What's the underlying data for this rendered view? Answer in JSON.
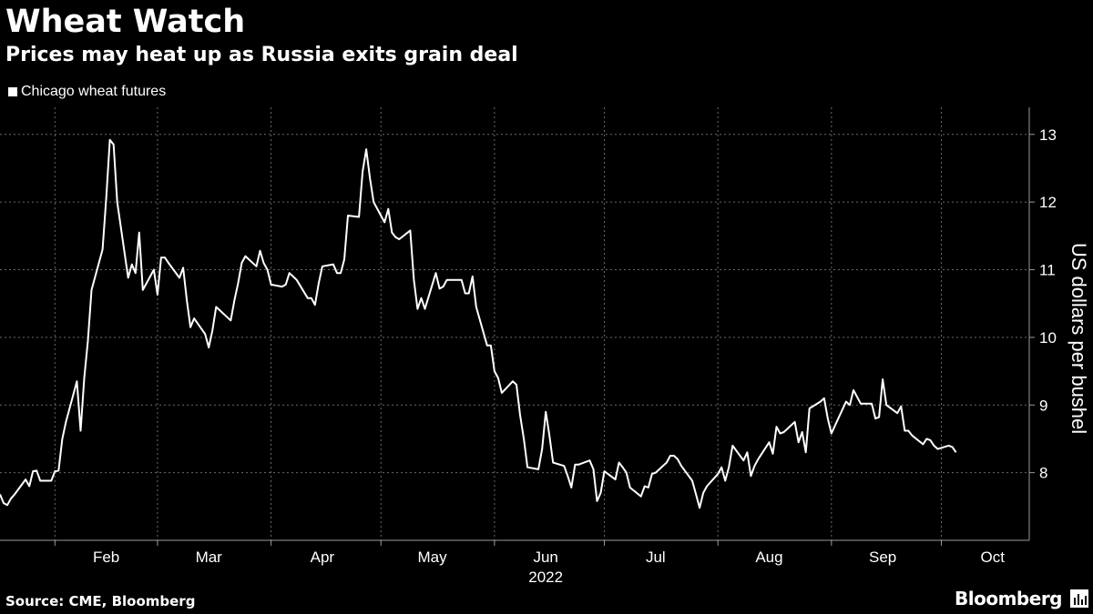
{
  "header": {
    "title": "Wheat Watch",
    "subtitle": "Prices may heat up as Russia exits grain deal"
  },
  "footer": {
    "source": "Source: CME, Bloomberg",
    "brand": "Bloomberg",
    "brand_icon": "bar-chart-icon"
  },
  "chart_data": {
    "type": "line",
    "legend_position": "top-left",
    "grid": true,
    "ylabel": "US dollars per bushel",
    "xlabel": "2022",
    "ylim": [
      7.0,
      13.4
    ],
    "xlim": [
      "2022-01-17",
      "2022-10-25"
    ],
    "y_ticks": [
      8,
      9,
      10,
      11,
      12,
      13
    ],
    "x_ticks": [
      {
        "label": "Feb",
        "date": "2022-02-01"
      },
      {
        "label": "Mar",
        "date": "2022-03-01"
      },
      {
        "label": "Apr",
        "date": "2022-04-01"
      },
      {
        "label": "May",
        "date": "2022-05-01"
      },
      {
        "label": "Jun",
        "date": "2022-06-01"
      },
      {
        "label": "Jul",
        "date": "2022-07-01"
      },
      {
        "label": "Aug",
        "date": "2022-08-01"
      },
      {
        "label": "Sep",
        "date": "2022-09-01"
      },
      {
        "label": "Oct",
        "date": "2022-10-01"
      }
    ],
    "series": [
      {
        "name": "Chicago wheat futures",
        "color": "#ffffff",
        "points": [
          [
            "2022-01-17",
            7.68
          ],
          [
            "2022-01-18",
            7.55
          ],
          [
            "2022-01-19",
            7.52
          ],
          [
            "2022-01-20",
            7.62
          ],
          [
            "2022-01-21",
            7.68
          ],
          [
            "2022-01-24",
            7.9
          ],
          [
            "2022-01-25",
            7.8
          ],
          [
            "2022-01-26",
            8.02
          ],
          [
            "2022-01-27",
            8.03
          ],
          [
            "2022-01-28",
            7.88
          ],
          [
            "2022-01-31",
            7.88
          ],
          [
            "2022-02-01",
            8.02
          ],
          [
            "2022-02-02",
            8.03
          ],
          [
            "2022-02-03",
            8.5
          ],
          [
            "2022-02-04",
            8.75
          ],
          [
            "2022-02-07",
            9.35
          ],
          [
            "2022-02-08",
            8.62
          ],
          [
            "2022-02-09",
            9.4
          ],
          [
            "2022-02-10",
            9.95
          ],
          [
            "2022-02-11",
            10.7
          ],
          [
            "2022-02-14",
            11.3
          ],
          [
            "2022-02-15",
            12.05
          ],
          [
            "2022-02-16",
            12.92
          ],
          [
            "2022-02-17",
            12.85
          ],
          [
            "2022-02-18",
            12.0
          ],
          [
            "2022-02-21",
            10.88
          ],
          [
            "2022-02-22",
            11.08
          ],
          [
            "2022-02-23",
            10.95
          ],
          [
            "2022-02-24",
            11.55
          ],
          [
            "2022-02-25",
            10.7
          ],
          [
            "2022-02-28",
            11.0
          ],
          [
            "2022-03-01",
            10.63
          ],
          [
            "2022-03-02",
            11.18
          ],
          [
            "2022-03-03",
            11.18
          ],
          [
            "2022-03-04",
            11.1
          ],
          [
            "2022-03-07",
            10.88
          ],
          [
            "2022-03-08",
            11.03
          ],
          [
            "2022-03-09",
            10.55
          ],
          [
            "2022-03-10",
            10.15
          ],
          [
            "2022-03-11",
            10.28
          ],
          [
            "2022-03-14",
            10.05
          ],
          [
            "2022-03-15",
            9.85
          ],
          [
            "2022-03-16",
            10.1
          ],
          [
            "2022-03-17",
            10.45
          ],
          [
            "2022-03-18",
            10.4
          ],
          [
            "2022-03-21",
            10.25
          ],
          [
            "2022-03-22",
            10.55
          ],
          [
            "2022-03-23",
            10.8
          ],
          [
            "2022-03-24",
            11.1
          ],
          [
            "2022-03-25",
            11.2
          ],
          [
            "2022-03-28",
            11.05
          ],
          [
            "2022-03-29",
            11.28
          ],
          [
            "2022-03-30",
            11.1
          ],
          [
            "2022-03-31",
            11.0
          ],
          [
            "2022-04-01",
            10.78
          ],
          [
            "2022-04-04",
            10.75
          ],
          [
            "2022-04-05",
            10.78
          ],
          [
            "2022-04-06",
            10.95
          ],
          [
            "2022-04-07",
            10.9
          ],
          [
            "2022-04-08",
            10.85
          ],
          [
            "2022-04-11",
            10.58
          ],
          [
            "2022-04-12",
            10.58
          ],
          [
            "2022-04-13",
            10.48
          ],
          [
            "2022-04-14",
            10.8
          ],
          [
            "2022-04-15",
            11.05
          ],
          [
            "2022-04-18",
            11.08
          ],
          [
            "2022-04-19",
            10.95
          ],
          [
            "2022-04-20",
            10.95
          ],
          [
            "2022-04-21",
            11.15
          ],
          [
            "2022-04-22",
            11.8
          ],
          [
            "2022-04-25",
            11.78
          ],
          [
            "2022-04-26",
            12.45
          ],
          [
            "2022-04-27",
            12.78
          ],
          [
            "2022-04-28",
            12.35
          ],
          [
            "2022-04-29",
            12.0
          ],
          [
            "2022-05-02",
            11.7
          ],
          [
            "2022-05-03",
            11.9
          ],
          [
            "2022-05-04",
            11.55
          ],
          [
            "2022-05-05",
            11.48
          ],
          [
            "2022-05-06",
            11.45
          ],
          [
            "2022-05-09",
            11.58
          ],
          [
            "2022-05-10",
            10.85
          ],
          [
            "2022-05-11",
            10.42
          ],
          [
            "2022-05-12",
            10.58
          ],
          [
            "2022-05-13",
            10.42
          ],
          [
            "2022-05-16",
            10.95
          ],
          [
            "2022-05-17",
            10.72
          ],
          [
            "2022-05-18",
            10.75
          ],
          [
            "2022-05-19",
            10.85
          ],
          [
            "2022-05-20",
            10.85
          ],
          [
            "2022-05-23",
            10.85
          ],
          [
            "2022-05-24",
            10.65
          ],
          [
            "2022-05-25",
            10.65
          ],
          [
            "2022-05-26",
            10.9
          ],
          [
            "2022-05-27",
            10.45
          ],
          [
            "2022-05-30",
            9.88
          ],
          [
            "2022-05-31",
            9.88
          ],
          [
            "2022-06-01",
            9.5
          ],
          [
            "2022-06-02",
            9.4
          ],
          [
            "2022-06-03",
            9.18
          ],
          [
            "2022-06-06",
            9.35
          ],
          [
            "2022-06-07",
            9.3
          ],
          [
            "2022-06-08",
            8.85
          ],
          [
            "2022-06-09",
            8.5
          ],
          [
            "2022-06-10",
            8.08
          ],
          [
            "2022-06-13",
            8.05
          ],
          [
            "2022-06-14",
            8.35
          ],
          [
            "2022-06-15",
            8.9
          ],
          [
            "2022-06-16",
            8.55
          ],
          [
            "2022-06-17",
            8.15
          ],
          [
            "2022-06-20",
            8.1
          ],
          [
            "2022-06-21",
            7.95
          ],
          [
            "2022-06-22",
            7.78
          ],
          [
            "2022-06-23",
            8.12
          ],
          [
            "2022-06-24",
            8.12
          ],
          [
            "2022-06-27",
            8.18
          ],
          [
            "2022-06-28",
            8.05
          ],
          [
            "2022-06-29",
            7.58
          ],
          [
            "2022-06-30",
            7.7
          ],
          [
            "2022-07-01",
            8.02
          ],
          [
            "2022-07-04",
            7.9
          ],
          [
            "2022-07-05",
            8.15
          ],
          [
            "2022-07-06",
            8.08
          ],
          [
            "2022-07-07",
            8.0
          ],
          [
            "2022-07-08",
            7.78
          ],
          [
            "2022-07-11",
            7.65
          ],
          [
            "2022-07-12",
            7.8
          ],
          [
            "2022-07-13",
            7.78
          ],
          [
            "2022-07-14",
            7.98
          ],
          [
            "2022-07-15",
            8.0
          ],
          [
            "2022-07-18",
            8.15
          ],
          [
            "2022-07-19",
            8.25
          ],
          [
            "2022-07-20",
            8.25
          ],
          [
            "2022-07-21",
            8.2
          ],
          [
            "2022-07-22",
            8.1
          ],
          [
            "2022-07-25",
            7.88
          ],
          [
            "2022-07-26",
            7.68
          ],
          [
            "2022-07-27",
            7.48
          ],
          [
            "2022-07-28",
            7.7
          ],
          [
            "2022-07-29",
            7.8
          ],
          [
            "2022-08-01",
            7.98
          ],
          [
            "2022-08-02",
            8.08
          ],
          [
            "2022-08-03",
            7.88
          ],
          [
            "2022-08-04",
            8.08
          ],
          [
            "2022-08-05",
            8.4
          ],
          [
            "2022-08-08",
            8.18
          ],
          [
            "2022-08-09",
            8.3
          ],
          [
            "2022-08-10",
            7.95
          ],
          [
            "2022-08-11",
            8.1
          ],
          [
            "2022-08-12",
            8.2
          ],
          [
            "2022-08-15",
            8.45
          ],
          [
            "2022-08-16",
            8.28
          ],
          [
            "2022-08-17",
            8.68
          ],
          [
            "2022-08-18",
            8.58
          ],
          [
            "2022-08-19",
            8.6
          ],
          [
            "2022-08-22",
            8.75
          ],
          [
            "2022-08-23",
            8.45
          ],
          [
            "2022-08-24",
            8.6
          ],
          [
            "2022-08-25",
            8.3
          ],
          [
            "2022-08-26",
            8.95
          ],
          [
            "2022-08-29",
            9.05
          ],
          [
            "2022-08-30",
            9.1
          ],
          [
            "2022-08-31",
            8.8
          ],
          [
            "2022-09-01",
            8.58
          ],
          [
            "2022-09-02",
            8.7
          ],
          [
            "2022-09-05",
            9.05
          ],
          [
            "2022-09-06",
            9.0
          ],
          [
            "2022-09-07",
            9.22
          ],
          [
            "2022-09-08",
            9.12
          ],
          [
            "2022-09-09",
            9.02
          ],
          [
            "2022-09-12",
            9.02
          ],
          [
            "2022-09-13",
            8.8
          ],
          [
            "2022-09-14",
            8.82
          ],
          [
            "2022-09-15",
            9.38
          ],
          [
            "2022-09-16",
            9.0
          ],
          [
            "2022-09-19",
            8.88
          ],
          [
            "2022-09-20",
            8.98
          ],
          [
            "2022-09-21",
            8.62
          ],
          [
            "2022-09-22",
            8.62
          ],
          [
            "2022-09-23",
            8.55
          ],
          [
            "2022-09-26",
            8.42
          ],
          [
            "2022-09-27",
            8.5
          ],
          [
            "2022-09-28",
            8.48
          ],
          [
            "2022-09-29",
            8.4
          ],
          [
            "2022-09-30",
            8.35
          ],
          [
            "2022-10-03",
            8.4
          ],
          [
            "2022-10-04",
            8.38
          ],
          [
            "2022-10-05",
            8.3
          ]
        ]
      }
    ]
  }
}
